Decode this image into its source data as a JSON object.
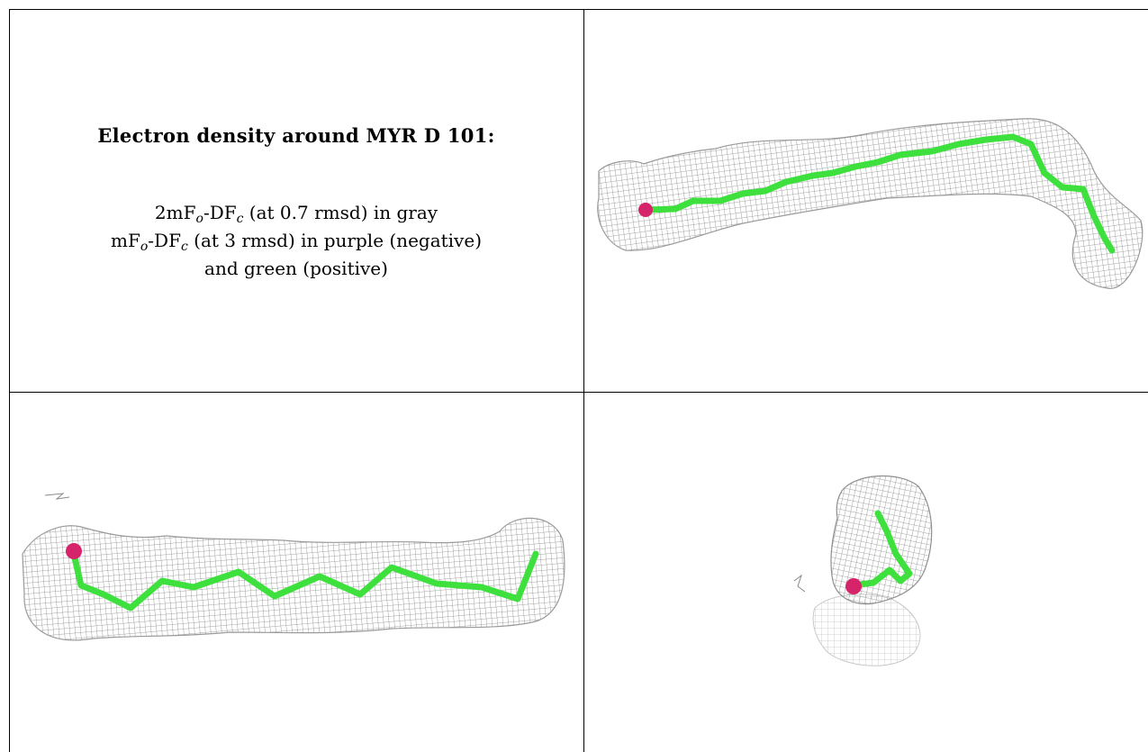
{
  "legend": {
    "title": "Electron density around MYR D 101:",
    "line1": {
      "prefix": "2mF",
      "sub1": "o",
      "mid": "-DF",
      "sub2": "c",
      "suffix": " (at 0.7 rmsd) in gray"
    },
    "line2": {
      "prefix": "mF",
      "sub1": "o",
      "mid": "-DF",
      "sub2": "c",
      "suffix": " (at 3 rmsd) in purple (negative)"
    },
    "line3": "and green (positive)"
  },
  "colors": {
    "mesh": "#8a8a8a",
    "ligand_carbon": "#3ee03e",
    "oxygen_atom": "#d6246a",
    "border": "#000000"
  },
  "views": [
    "view-top-right",
    "view-bottom-left",
    "view-bottom-right"
  ]
}
